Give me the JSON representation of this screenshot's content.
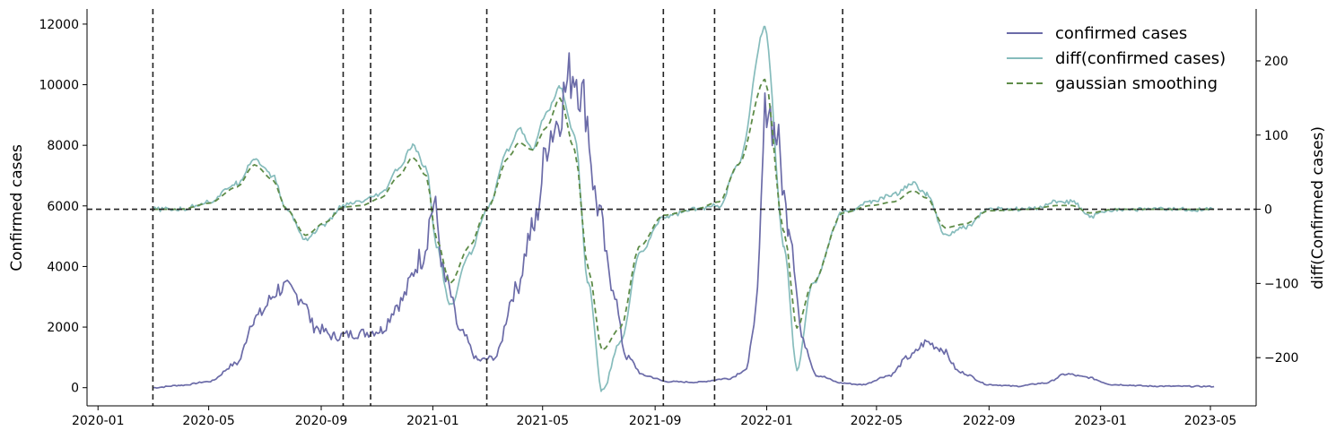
{
  "chart_data": {
    "type": "line",
    "title": "",
    "xlabel": "",
    "ylabel": "Confirmed cases",
    "y2label": "diff(Confirmed cases)",
    "x_tick_labels": [
      "2020-01",
      "2020-05",
      "2020-09",
      "2021-01",
      "2021-05",
      "2021-09",
      "2022-01",
      "2022-05",
      "2022-09",
      "2023-01",
      "2023-05"
    ],
    "y_ticks": [
      0,
      2000,
      4000,
      6000,
      8000,
      10000,
      12000
    ],
    "y2_ticks": [
      -200,
      -100,
      0,
      100,
      200
    ],
    "y2_tick_labels": [
      "−200",
      "−100",
      "0",
      "100",
      "200"
    ],
    "ylim": [
      -600,
      12500
    ],
    "y2lim": [
      -265,
      270
    ],
    "xlim": [
      "2019-12-20",
      "2023-06-20"
    ],
    "horizontal_line": {
      "axis": "y2",
      "value": 0,
      "style": "dashed",
      "color": "#222222"
    },
    "vertical_lines": [
      "2020-03-01",
      "2020-09-25",
      "2020-10-25",
      "2021-03-01",
      "2021-09-10",
      "2021-11-05",
      "2022-03-25"
    ],
    "legend_position": "top-right",
    "legend": [
      "confirmed cases",
      "diff(confirmed cases)",
      "gaussian smoothing"
    ],
    "colors": {
      "confirmed": "#6b6ba8",
      "diff": "#86bcbc",
      "smooth": "#5e8c48",
      "vline": "#222222"
    },
    "series": [
      {
        "name": "confirmed cases",
        "axis": "y",
        "style": "solid",
        "color": "#6b6ba8",
        "noise": 0.1,
        "points": [
          [
            "2020-03-01",
            0
          ],
          [
            "2020-04-01",
            80
          ],
          [
            "2020-05-01",
            200
          ],
          [
            "2020-06-01",
            800
          ],
          [
            "2020-06-20",
            2300
          ],
          [
            "2020-07-20",
            3300
          ],
          [
            "2020-08-10",
            3000
          ],
          [
            "2020-08-25",
            2000
          ],
          [
            "2020-09-15",
            1700
          ],
          [
            "2020-10-15",
            1800
          ],
          [
            "2020-11-05",
            1900
          ],
          [
            "2020-11-25",
            2800
          ],
          [
            "2020-12-20",
            4300
          ],
          [
            "2021-01-02",
            6000
          ],
          [
            "2021-01-15",
            3500
          ],
          [
            "2021-02-01",
            1800
          ],
          [
            "2021-02-20",
            900
          ],
          [
            "2021-03-10",
            1000
          ],
          [
            "2021-04-01",
            3200
          ],
          [
            "2021-04-20",
            5200
          ],
          [
            "2021-05-10",
            8500
          ],
          [
            "2021-06-05",
            10500
          ],
          [
            "2021-06-15",
            9500
          ],
          [
            "2021-06-30",
            6000
          ],
          [
            "2021-07-15",
            3500
          ],
          [
            "2021-08-01",
            1000
          ],
          [
            "2021-08-20",
            400
          ],
          [
            "2021-09-15",
            200
          ],
          [
            "2021-10-15",
            180
          ],
          [
            "2021-11-20",
            300
          ],
          [
            "2021-12-10",
            600
          ],
          [
            "2021-12-20",
            2500
          ],
          [
            "2022-01-01",
            9500
          ],
          [
            "2022-01-10",
            8500
          ],
          [
            "2022-01-25",
            5500
          ],
          [
            "2022-02-10",
            1500
          ],
          [
            "2022-02-25",
            400
          ],
          [
            "2022-03-25",
            150
          ],
          [
            "2022-04-15",
            100
          ],
          [
            "2022-05-15",
            400
          ],
          [
            "2022-06-05",
            1000
          ],
          [
            "2022-06-25",
            1500
          ],
          [
            "2022-07-10",
            1300
          ],
          [
            "2022-08-01",
            500
          ],
          [
            "2022-09-01",
            100
          ],
          [
            "2022-10-01",
            50
          ],
          [
            "2022-11-01",
            150
          ],
          [
            "2022-11-25",
            450
          ],
          [
            "2022-12-15",
            350
          ],
          [
            "2023-01-15",
            100
          ],
          [
            "2023-03-01",
            50
          ],
          [
            "2023-05-05",
            40
          ]
        ]
      },
      {
        "name": "diff(confirmed cases)",
        "axis": "y2",
        "style": "solid",
        "color": "#86bcbc",
        "noise": 3,
        "points": [
          [
            "2020-03-01",
            0
          ],
          [
            "2020-04-01",
            0
          ],
          [
            "2020-05-01",
            10
          ],
          [
            "2020-06-01",
            35
          ],
          [
            "2020-06-20",
            68
          ],
          [
            "2020-07-10",
            45
          ],
          [
            "2020-07-25",
            0
          ],
          [
            "2020-08-15",
            -40
          ],
          [
            "2020-09-05",
            -20
          ],
          [
            "2020-09-25",
            5
          ],
          [
            "2020-10-15",
            10
          ],
          [
            "2020-11-05",
            20
          ],
          [
            "2020-11-25",
            55
          ],
          [
            "2020-12-10",
            85
          ],
          [
            "2020-12-25",
            55
          ],
          [
            "2021-01-05",
            -50
          ],
          [
            "2021-01-20",
            -130
          ],
          [
            "2021-02-10",
            -60
          ],
          [
            "2021-03-01",
            0
          ],
          [
            "2021-03-25",
            80
          ],
          [
            "2021-04-05",
            110
          ],
          [
            "2021-04-20",
            80
          ],
          [
            "2021-05-05",
            130
          ],
          [
            "2021-05-20",
            165
          ],
          [
            "2021-06-05",
            100
          ],
          [
            "2021-06-20",
            -100
          ],
          [
            "2021-07-05",
            -245
          ],
          [
            "2021-07-25",
            -180
          ],
          [
            "2021-08-15",
            -60
          ],
          [
            "2021-09-10",
            -10
          ],
          [
            "2021-10-15",
            0
          ],
          [
            "2021-11-10",
            5
          ],
          [
            "2021-12-01",
            60
          ],
          [
            "2021-12-30",
            245
          ],
          [
            "2022-01-20",
            -50
          ],
          [
            "2022-02-03",
            -215
          ],
          [
            "2022-02-20",
            -100
          ],
          [
            "2022-03-25",
            -5
          ],
          [
            "2022-04-25",
            10
          ],
          [
            "2022-05-20",
            20
          ],
          [
            "2022-06-10",
            35
          ],
          [
            "2022-06-25",
            20
          ],
          [
            "2022-07-15",
            -35
          ],
          [
            "2022-08-05",
            -25
          ],
          [
            "2022-09-01",
            0
          ],
          [
            "2022-10-15",
            0
          ],
          [
            "2022-11-15",
            10
          ],
          [
            "2022-12-01",
            10
          ],
          [
            "2022-12-20",
            -10
          ],
          [
            "2023-01-15",
            0
          ],
          [
            "2023-05-05",
            0
          ]
        ]
      },
      {
        "name": "gaussian smoothing",
        "axis": "y2",
        "style": "dashed",
        "color": "#5e8c48",
        "noise": 0,
        "points": [
          [
            "2020-03-01",
            0
          ],
          [
            "2020-04-01",
            0
          ],
          [
            "2020-05-01",
            8
          ],
          [
            "2020-06-01",
            30
          ],
          [
            "2020-06-20",
            60
          ],
          [
            "2020-07-10",
            40
          ],
          [
            "2020-07-25",
            0
          ],
          [
            "2020-08-15",
            -35
          ],
          [
            "2020-09-05",
            -18
          ],
          [
            "2020-09-25",
            3
          ],
          [
            "2020-10-15",
            5
          ],
          [
            "2020-11-05",
            15
          ],
          [
            "2020-11-25",
            45
          ],
          [
            "2020-12-10",
            70
          ],
          [
            "2020-12-25",
            45
          ],
          [
            "2021-01-05",
            -40
          ],
          [
            "2021-01-20",
            -100
          ],
          [
            "2021-02-10",
            -50
          ],
          [
            "2021-03-01",
            0
          ],
          [
            "2021-03-25",
            70
          ],
          [
            "2021-04-05",
            90
          ],
          [
            "2021-04-20",
            80
          ],
          [
            "2021-05-05",
            110
          ],
          [
            "2021-05-20",
            150
          ],
          [
            "2021-06-05",
            80
          ],
          [
            "2021-06-20",
            -80
          ],
          [
            "2021-07-05",
            -190
          ],
          [
            "2021-07-25",
            -160
          ],
          [
            "2021-08-15",
            -50
          ],
          [
            "2021-09-10",
            -8
          ],
          [
            "2021-10-15",
            0
          ],
          [
            "2021-11-10",
            10
          ],
          [
            "2021-12-01",
            60
          ],
          [
            "2021-12-30",
            175
          ],
          [
            "2022-01-20",
            -30
          ],
          [
            "2022-02-03",
            -160
          ],
          [
            "2022-02-20",
            -100
          ],
          [
            "2022-03-25",
            -5
          ],
          [
            "2022-04-25",
            5
          ],
          [
            "2022-05-20",
            10
          ],
          [
            "2022-06-10",
            25
          ],
          [
            "2022-06-25",
            15
          ],
          [
            "2022-07-15",
            -25
          ],
          [
            "2022-08-05",
            -20
          ],
          [
            "2022-09-01",
            -2
          ],
          [
            "2022-10-15",
            0
          ],
          [
            "2022-11-15",
            5
          ],
          [
            "2022-12-01",
            5
          ],
          [
            "2022-12-20",
            -5
          ],
          [
            "2023-01-15",
            0
          ],
          [
            "2023-05-05",
            0
          ]
        ]
      }
    ]
  }
}
